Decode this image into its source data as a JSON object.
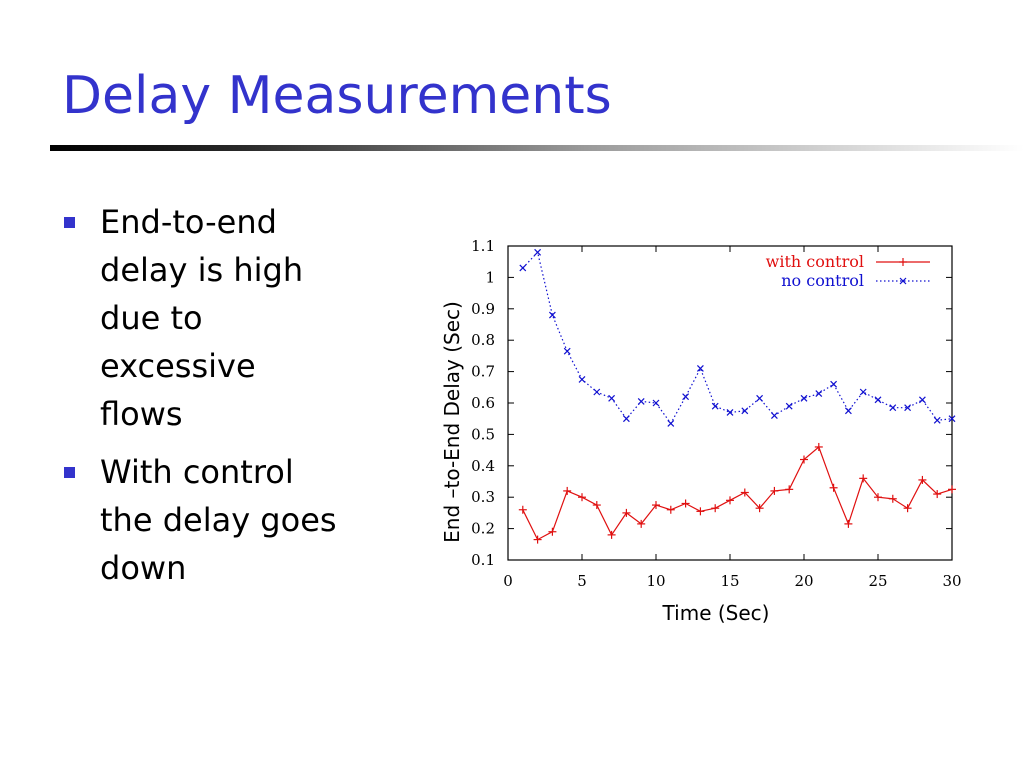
{
  "slide": {
    "title": "Delay Measurements",
    "bullets": [
      "End-to-end delay is high due to excessive flows",
      "With control the delay goes down"
    ]
  },
  "colors": {
    "title": "#3333cc",
    "bullet": "#3333cc",
    "with_control": "#e01010",
    "no_control": "#1010d0"
  },
  "chart_data": {
    "type": "line",
    "xlabel": "Time (Sec)",
    "ylabel": "End –to-End Delay (Sec)",
    "xlim": [
      0,
      30
    ],
    "ylim": [
      0.1,
      1.1
    ],
    "x_ticks": [
      "0",
      "5",
      "10",
      "15",
      "20",
      "25",
      "30"
    ],
    "y_ticks": [
      "0.1",
      "0.2",
      "0.3",
      "0.4",
      "0.5",
      "0.6",
      "0.7",
      "0.8",
      "0.9",
      "1",
      "1.1"
    ],
    "x_tick_values": [
      0,
      5,
      10,
      15,
      20,
      25,
      30
    ],
    "y_tick_values": [
      0.1,
      0.2,
      0.3,
      0.4,
      0.5,
      0.6,
      0.7,
      0.8,
      0.9,
      1.0,
      1.1
    ],
    "grid": false,
    "legend_position": "top-right",
    "x": [
      1,
      2,
      3,
      4,
      5,
      6,
      7,
      8,
      9,
      10,
      11,
      12,
      13,
      14,
      15,
      16,
      17,
      18,
      19,
      20,
      21,
      22,
      23,
      24,
      25,
      26,
      27,
      28,
      29,
      30
    ],
    "series": [
      {
        "name": "with control",
        "color": "#e01010",
        "line_style": "solid",
        "marker": "plus",
        "values": [
          0.26,
          0.165,
          0.19,
          0.32,
          0.3,
          0.275,
          0.18,
          0.25,
          0.215,
          0.275,
          0.26,
          0.28,
          0.255,
          0.265,
          0.29,
          0.315,
          0.265,
          0.32,
          0.325,
          0.42,
          0.46,
          0.33,
          0.215,
          0.36,
          0.3,
          0.295,
          0.265,
          0.355,
          0.31,
          0.325
        ]
      },
      {
        "name": "no control",
        "color": "#1010d0",
        "line_style": "dotted",
        "marker": "x",
        "values": [
          1.03,
          1.08,
          0.88,
          0.765,
          0.675,
          0.635,
          0.615,
          0.55,
          0.605,
          0.6,
          0.535,
          0.62,
          0.71,
          0.59,
          0.57,
          0.575,
          0.615,
          0.56,
          0.59,
          0.615,
          0.63,
          0.66,
          0.575,
          0.635,
          0.61,
          0.585,
          0.585,
          0.61,
          0.545,
          0.55
        ]
      }
    ]
  }
}
